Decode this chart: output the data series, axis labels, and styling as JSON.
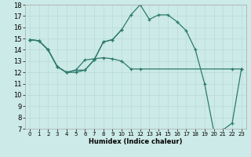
{
  "xlabel": "Humidex (Indice chaleur)",
  "xlim": [
    -0.5,
    23.5
  ],
  "ylim": [
    7,
    18
  ],
  "xticks": [
    0,
    1,
    2,
    3,
    4,
    5,
    6,
    7,
    8,
    9,
    10,
    11,
    12,
    13,
    14,
    15,
    16,
    17,
    18,
    19,
    20,
    21,
    22,
    23
  ],
  "yticks": [
    7,
    8,
    9,
    10,
    11,
    12,
    13,
    14,
    15,
    16,
    17,
    18
  ],
  "bg_color": "#cceae7",
  "line_color": "#2d7a6e",
  "line1_x": [
    0,
    1,
    2,
    3,
    4,
    5,
    6,
    7,
    8,
    9,
    10,
    11,
    12,
    13,
    14,
    15,
    16,
    17,
    18,
    19,
    20,
    21,
    22,
    23
  ],
  "line1_y": [
    14.9,
    14.8,
    14.0,
    12.5,
    12.0,
    12.0,
    12.2,
    13.1,
    14.7,
    14.9,
    15.8,
    17.1,
    18.0,
    16.7,
    17.1,
    17.1,
    16.5,
    15.7,
    14.0,
    11.0,
    6.8,
    6.9,
    7.5,
    12.3
  ],
  "line2_x": [
    0,
    1,
    2,
    3,
    4,
    5,
    6,
    7,
    8,
    9,
    10,
    11,
    12,
    22,
    23
  ],
  "line2_y": [
    14.9,
    14.8,
    14.0,
    12.5,
    12.0,
    12.2,
    13.1,
    13.2,
    13.3,
    13.2,
    13.0,
    12.3,
    12.3,
    12.3,
    12.3
  ],
  "line3_x": [
    0,
    1,
    2,
    3,
    4,
    5,
    6,
    7,
    8,
    9,
    10
  ],
  "line3_y": [
    14.9,
    14.8,
    14.0,
    12.5,
    12.0,
    12.2,
    12.2,
    13.1,
    14.7,
    14.9,
    15.8
  ]
}
